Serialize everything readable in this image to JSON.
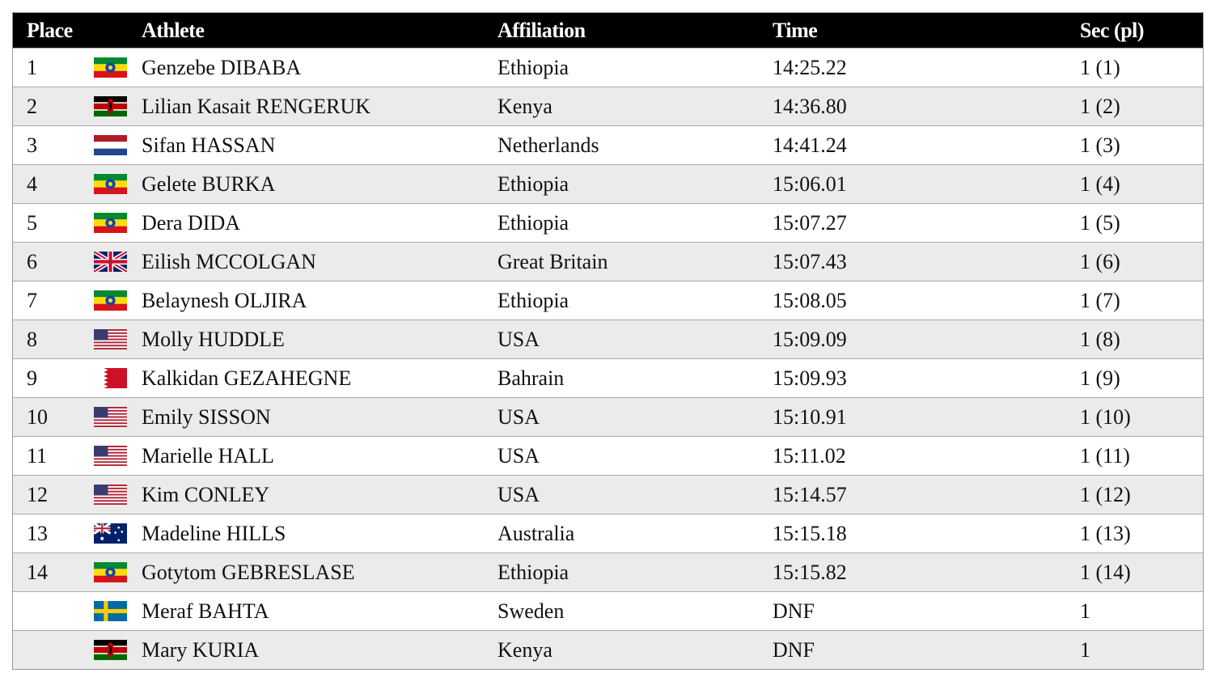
{
  "table": {
    "header": [
      "Place",
      "Athlete",
      "Affiliation",
      "Time",
      "Sec (pl)"
    ],
    "rows": [
      [
        1,
        "Genzebe DIBABA",
        "Ethiopia",
        "14:25.22",
        "1 (1)"
      ],
      [
        2,
        "Lilian Kasait RENGERUK",
        "Kenya",
        "14:36.80",
        "1 (2)"
      ],
      [
        3,
        "Sifan HASSAN",
        "Netherlands",
        "14:41.24",
        "1 (3)"
      ],
      [
        4,
        "Gelete BURKA",
        "Ethiopia",
        "15:06.01",
        "1 (4)"
      ],
      [
        5,
        "Dera DIDA",
        "Ethiopia",
        "15:07.27",
        "1 (5)"
      ],
      [
        6,
        "Eilish MCCOLGAN",
        "Great Britain",
        "15:07.43",
        "1 (6)"
      ],
      [
        7,
        "Belaynesh OLJIRA",
        "Ethiopia",
        "15:08.05",
        "1 (7)"
      ],
      [
        8,
        "Molly HUDDLE",
        "USA",
        "15:09.09",
        "1 (8)"
      ],
      [
        9,
        "Kalkidan GEZAHEGNE",
        "Bahrain",
        "15:09.93",
        "1 (9)"
      ],
      [
        10,
        "Emily SISSON",
        "USA",
        "15:10.91",
        "1 (10)"
      ],
      [
        11,
        "Marielle HALL",
        "USA",
        "15:11.02",
        "1 (11)"
      ],
      [
        12,
        "Kim CONLEY",
        "USA",
        "15:14.57",
        "1 (12)"
      ],
      [
        13,
        "Madeline HILLS",
        "Australia",
        "15:15.18",
        "1 (13)"
      ],
      [
        14,
        "Gotytom GEBRESLASE",
        "Ethiopia",
        "15:15.82",
        "1 (14)"
      ],
      [
        null,
        "Meraf BAHTA",
        "Sweden",
        "DNF",
        "1"
      ],
      [
        null,
        "Mary KURIA",
        "Kenya",
        "DNF",
        "1"
      ]
    ]
  }
}
